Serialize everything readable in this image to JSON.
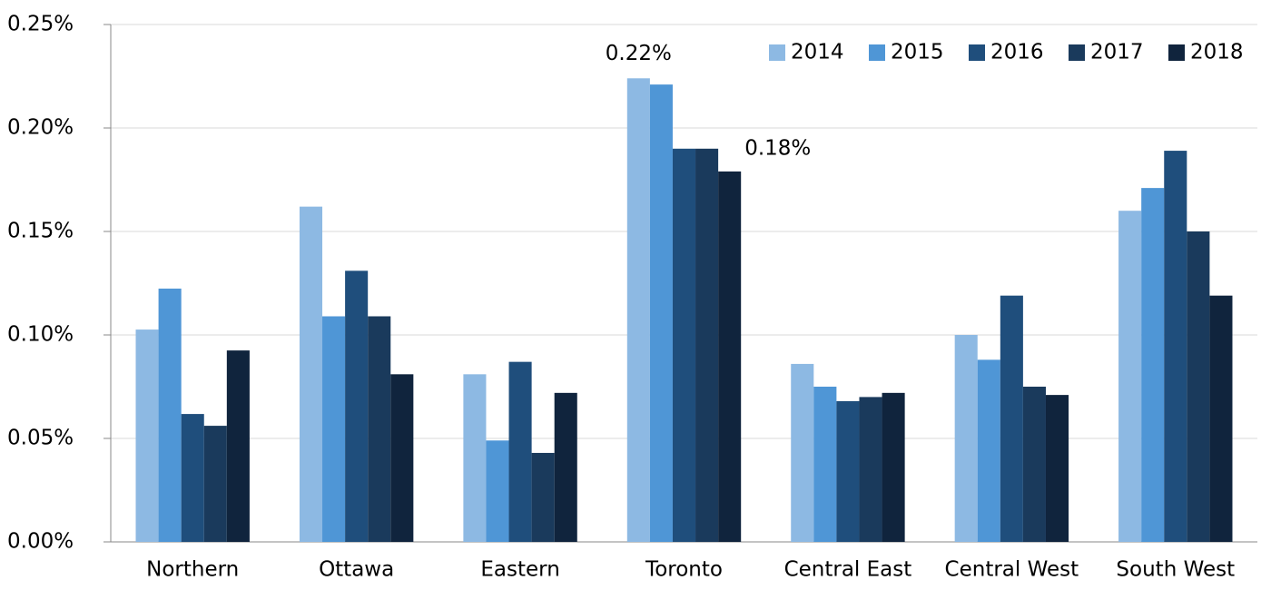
{
  "chart_data": {
    "type": "bar",
    "categories": [
      "Northern",
      "Ottawa",
      "Eastern",
      "Toronto",
      "Central East",
      "Central West",
      "South West"
    ],
    "series": [
      {
        "name": "2014",
        "color": "#8db9e3",
        "values": [
          0.1026,
          0.162,
          0.081,
          0.224,
          0.086,
          0.1,
          0.16
        ],
        "value_labels": [
          null,
          null,
          null,
          "0.22%",
          null,
          null,
          null
        ]
      },
      {
        "name": "2015",
        "color": "#4f96d6",
        "values": [
          0.1224,
          0.109,
          0.049,
          0.221,
          0.075,
          0.088,
          0.171
        ]
      },
      {
        "name": "2016",
        "color": "#1f4e7c",
        "values": [
          0.0618,
          0.131,
          0.087,
          0.19,
          0.068,
          0.119,
          0.189
        ]
      },
      {
        "name": "2017",
        "color": "#1a3a5c",
        "values": [
          0.0561,
          0.109,
          0.043,
          0.19,
          0.07,
          0.075,
          0.15
        ]
      },
      {
        "name": "2018",
        "color": "#10243d",
        "values": [
          0.0925,
          0.081,
          0.072,
          0.179,
          0.072,
          0.071,
          0.119
        ],
        "value_labels": [
          null,
          null,
          null,
          "0.18%",
          null,
          null,
          null
        ]
      }
    ],
    "ylim": [
      0,
      0.25
    ],
    "yticks": [
      {
        "value": 0,
        "label": "0.00%"
      },
      {
        "value": 0.05,
        "label": "0.05%"
      },
      {
        "value": 0.1,
        "label": "0.10%"
      },
      {
        "value": 0.15,
        "label": "0.15%"
      },
      {
        "value": 0.2,
        "label": "0.20%"
      },
      {
        "value": 0.25,
        "label": "0.25%"
      }
    ],
    "grid": true,
    "legend": "top-right"
  }
}
